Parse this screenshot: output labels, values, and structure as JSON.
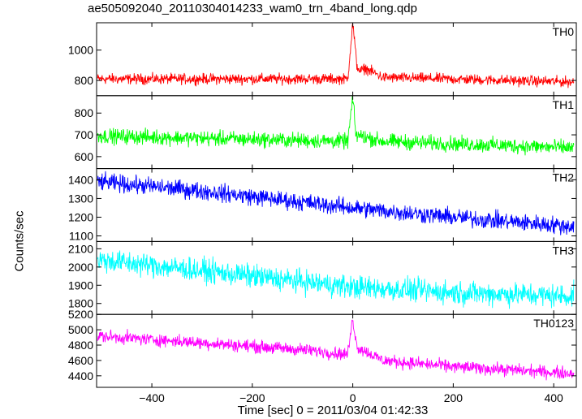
{
  "chart_data": {
    "type": "line",
    "title": "ae505092040_20110304014233_wam0_trn_4band_long.qdp",
    "xlabel": "Time [sec] 0 = 2011/03/04 01:42:33",
    "ylabel": "Counts/sec",
    "xlim": [
      -510,
      445
    ],
    "x_ticks": [
      -400,
      -200,
      0,
      200,
      400
    ],
    "x_tick_labels": [
      "−400",
      "−200",
      "0",
      "200",
      "400"
    ],
    "panels": [
      {
        "name": "TH0",
        "color": "#ff0000",
        "ylim": [
          700,
          1180
        ],
        "y_ticks": [
          800,
          1000
        ],
        "y_tick_labels": [
          "800",
          "1000"
        ],
        "trend": [
          [
            -510,
            810
          ],
          [
            -10,
            810
          ],
          [
            0,
            1180
          ],
          [
            8,
            900
          ],
          [
            15,
            860
          ],
          [
            25,
            880
          ],
          [
            60,
            820
          ],
          [
            440,
            790
          ]
        ],
        "noise": 30
      },
      {
        "name": "TH1",
        "color": "#00ff00",
        "ylim": [
          545,
          880
        ],
        "y_ticks": [
          600,
          700,
          800
        ],
        "y_tick_labels": [
          "600",
          "700",
          "800"
        ],
        "trend": [
          [
            -510,
            695
          ],
          [
            -10,
            670
          ],
          [
            0,
            870
          ],
          [
            6,
            700
          ],
          [
            60,
            670
          ],
          [
            440,
            640
          ]
        ],
        "noise": 30
      },
      {
        "name": "TH2",
        "color": "#0000ff",
        "ylim": [
          1070,
          1460
        ],
        "y_ticks": [
          1100,
          1200,
          1300,
          1400
        ],
        "y_tick_labels": [
          "1100",
          "1200",
          "1300",
          "1400"
        ],
        "trend": [
          [
            -510,
            1390
          ],
          [
            -300,
            1340
          ],
          [
            -100,
            1280
          ],
          [
            0,
            1250
          ],
          [
            200,
            1200
          ],
          [
            440,
            1150
          ]
        ],
        "noise": 40
      },
      {
        "name": "TH3",
        "color": "#00ffff",
        "ylim": [
          1740,
          2140
        ],
        "y_ticks": [
          1800,
          1900,
          2000,
          2100
        ],
        "y_tick_labels": [
          "1800",
          "1900",
          "2000",
          "2100"
        ],
        "trend": [
          [
            -510,
            2040
          ],
          [
            -300,
            1980
          ],
          [
            -100,
            1920
          ],
          [
            0,
            1890
          ],
          [
            200,
            1860
          ],
          [
            440,
            1840
          ]
        ],
        "noise": 55
      },
      {
        "name": "TH0123",
        "color": "#ff00ff",
        "ylim": [
          4250,
          5200
        ],
        "y_ticks": [
          4400,
          4600,
          4800,
          5000,
          5200
        ],
        "y_tick_labels": [
          "4400",
          "4600",
          "4800",
          "5000",
          "5200"
        ],
        "trend": [
          [
            -510,
            4920
          ],
          [
            -300,
            4830
          ],
          [
            -100,
            4740
          ],
          [
            -10,
            4680
          ],
          [
            0,
            5150
          ],
          [
            8,
            4780
          ],
          [
            60,
            4600
          ],
          [
            200,
            4520
          ],
          [
            440,
            4430
          ]
        ],
        "noise": 70
      }
    ],
    "grid": false,
    "legend": "panel labels at top-right"
  }
}
